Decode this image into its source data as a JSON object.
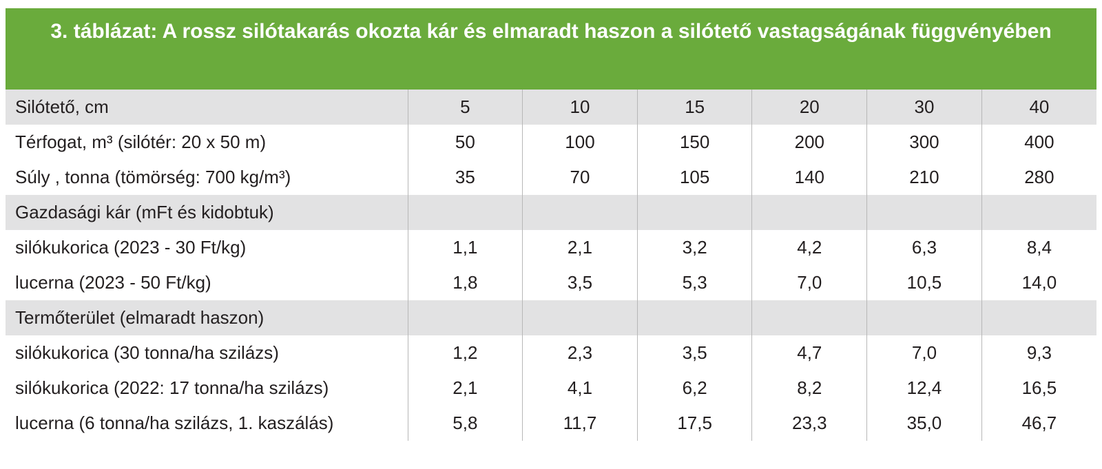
{
  "title": "3. táblázat: A rossz silótakarás okozta kár és elmaradt haszon a silótető vastagságának függvényében",
  "rows": [
    {
      "label": "Silótető, cm",
      "values": [
        "5",
        "10",
        "15",
        "20",
        "30",
        "40"
      ],
      "shade": "gray"
    },
    {
      "label": "Térfogat, m³ (silótér: 20 x 50 m)",
      "values": [
        "50",
        "100",
        "150",
        "200",
        "300",
        "400"
      ],
      "shade": "white"
    },
    {
      "label": "Súly , tonna (tömörség: 700 kg/m³)",
      "values": [
        "35",
        "70",
        "105",
        "140",
        "210",
        "280"
      ],
      "shade": "white"
    },
    {
      "label": "Gazdasági kár (mFt és kidobtuk)",
      "values": [
        "",
        "",
        "",
        "",
        "",
        ""
      ],
      "shade": "gray"
    },
    {
      "label": "silókukorica (2023 - 30 Ft/kg)",
      "values": [
        "1,1",
        "2,1",
        "3,2",
        "4,2",
        "6,3",
        "8,4"
      ],
      "shade": "white"
    },
    {
      "label": "lucerna (2023 - 50 Ft/kg)",
      "values": [
        "1,8",
        "3,5",
        "5,3",
        "7,0",
        "10,5",
        "14,0"
      ],
      "shade": "white"
    },
    {
      "label": "Termőterület (elmaradt haszon)",
      "values": [
        "",
        "",
        "",
        "",
        "",
        ""
      ],
      "shade": "gray"
    },
    {
      "label": "silókukorica (30 tonna/ha szilázs)",
      "values": [
        "1,2",
        "2,3",
        "3,5",
        "4,7",
        "7,0",
        "9,3"
      ],
      "shade": "white"
    },
    {
      "label": "silókukorica (2022: 17 tonna/ha szilázs)",
      "values": [
        "2,1",
        "4,1",
        "6,2",
        "8,2",
        "12,4",
        "16,5"
      ],
      "shade": "white"
    },
    {
      "label": "lucerna (6 tonna/ha szilázs, 1. kaszálás)",
      "values": [
        "5,8",
        "11,7",
        "17,5",
        "23,3",
        "35,0",
        "46,7"
      ],
      "shade": "white"
    }
  ]
}
